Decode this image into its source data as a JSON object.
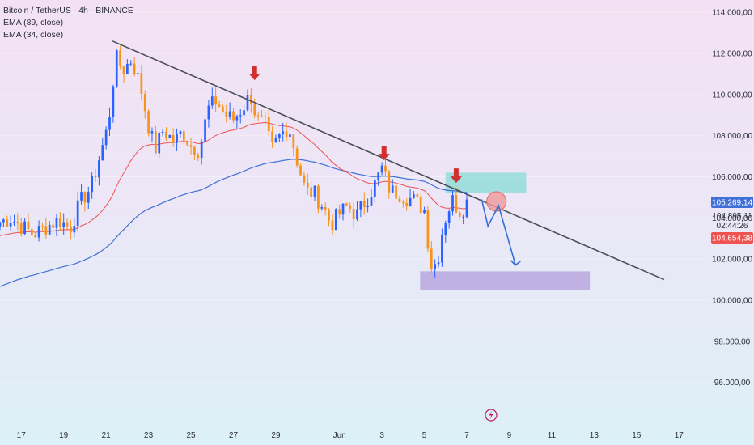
{
  "legend": {
    "symbol": "Bitcoin / TetherUS · 4h · BINANCE",
    "ema89": "EMA (89, close)",
    "ema34": "EMA (34, close)"
  },
  "price_tags": {
    "ema89": "105.269,14",
    "last_price": "104.895,11",
    "countdown": "02:44:26",
    "ema34": "104.654,38"
  },
  "colors": {
    "up": "#2962ff",
    "down": "#f7931a",
    "ema34": "#ef5350",
    "ema89": "#3f6fd8",
    "trendline": "#4a4e5a",
    "arrow": "#d32f2f",
    "resistance_zone": "#80dbd3",
    "support_zone": "#b39ddb",
    "projection": "#2f6fd6"
  },
  "chart_data": {
    "type": "candlestick",
    "symbol": "Bitcoin / TetherUS",
    "interval": "4h",
    "exchange": "BINANCE",
    "ylim": [
      95000,
      114600
    ],
    "y_ticks": [
      96000,
      98000,
      100000,
      102000,
      104000,
      106000,
      108000,
      110000,
      112000,
      114000
    ],
    "y_tick_labels": [
      "96.000,00",
      "98.000,00",
      "100.000,00",
      "102.000,00",
      "104.000,00",
      "106.000,00",
      "108.000,00",
      "110.000,00",
      "112.000,00",
      "114.000,00"
    ],
    "x_ticks": [
      {
        "label": "17",
        "day": 17
      },
      {
        "label": "19",
        "day": 19
      },
      {
        "label": "21",
        "day": 21
      },
      {
        "label": "23",
        "day": 23
      },
      {
        "label": "25",
        "day": 25
      },
      {
        "label": "27",
        "day": 27
      },
      {
        "label": "29",
        "day": 29
      },
      {
        "label": "Jun",
        "day": 32
      },
      {
        "label": "3",
        "day": 34
      },
      {
        "label": "5",
        "day": 36
      },
      {
        "label": "7",
        "day": 38
      },
      {
        "label": "9",
        "day": 40
      },
      {
        "label": "11",
        "day": 42
      },
      {
        "label": "13",
        "day": 44
      },
      {
        "label": "15",
        "day": 46
      },
      {
        "label": "17",
        "day": 48
      }
    ],
    "xlim": [
      16.0,
      49.4
    ],
    "ohlc_keyframes": [
      {
        "day": 16.0,
        "close": 103800
      },
      {
        "day": 16.5,
        "close": 104000
      },
      {
        "day": 17.0,
        "close": 103600
      },
      {
        "day": 17.6,
        "close": 103200
      },
      {
        "day": 18.2,
        "close": 103600
      },
      {
        "day": 18.8,
        "close": 103900
      },
      {
        "day": 19.3,
        "close": 103500
      },
      {
        "day": 19.8,
        "close": 104800
      },
      {
        "day": 20.3,
        "close": 105500
      },
      {
        "day": 20.7,
        "close": 107000
      },
      {
        "day": 21.1,
        "close": 108500
      },
      {
        "day": 21.45,
        "close": 111800
      },
      {
        "day": 21.8,
        "close": 111200
      },
      {
        "day": 22.2,
        "close": 111700
      },
      {
        "day": 22.6,
        "close": 110500
      },
      {
        "day": 23.0,
        "close": 108500
      },
      {
        "day": 23.3,
        "close": 107300
      },
      {
        "day": 23.7,
        "close": 108300
      },
      {
        "day": 24.2,
        "close": 107700
      },
      {
        "day": 24.6,
        "close": 108200
      },
      {
        "day": 25.0,
        "close": 107500
      },
      {
        "day": 25.4,
        "close": 107300
      },
      {
        "day": 25.8,
        "close": 109300
      },
      {
        "day": 26.2,
        "close": 109700
      },
      {
        "day": 26.6,
        "close": 109000
      },
      {
        "day": 27.0,
        "close": 108800
      },
      {
        "day": 27.4,
        "close": 109300
      },
      {
        "day": 27.8,
        "close": 110000
      },
      {
        "day": 28.1,
        "close": 108800
      },
      {
        "day": 28.5,
        "close": 108500
      },
      {
        "day": 28.8,
        "close": 107300
      },
      {
        "day": 29.2,
        "close": 108000
      },
      {
        "day": 29.6,
        "close": 108500
      },
      {
        "day": 30.0,
        "close": 106800
      },
      {
        "day": 30.4,
        "close": 105300
      },
      {
        "day": 30.8,
        "close": 105200
      },
      {
        "day": 31.2,
        "close": 104600
      },
      {
        "day": 31.6,
        "close": 103700
      },
      {
        "day": 32.0,
        "close": 104200
      },
      {
        "day": 32.4,
        "close": 104600
      },
      {
        "day": 32.8,
        "close": 104100
      },
      {
        "day": 33.2,
        "close": 104800
      },
      {
        "day": 33.6,
        "close": 105500
      },
      {
        "day": 34.0,
        "close": 106400
      },
      {
        "day": 34.4,
        "close": 105300
      },
      {
        "day": 34.8,
        "close": 105200
      },
      {
        "day": 35.2,
        "close": 105000
      },
      {
        "day": 35.6,
        "close": 104800
      },
      {
        "day": 36.0,
        "close": 104400
      },
      {
        "day": 36.3,
        "close": 101700
      },
      {
        "day": 36.6,
        "close": 101800
      },
      {
        "day": 36.9,
        "close": 103700
      },
      {
        "day": 37.3,
        "close": 104900
      },
      {
        "day": 37.7,
        "close": 104300
      },
      {
        "day": 38.1,
        "close": 104895
      }
    ],
    "series": [
      {
        "name": "EMA (89, close)",
        "last": 105269.14
      },
      {
        "name": "EMA (34, close)",
        "last": 104654.38
      }
    ],
    "last_price": 104895.11,
    "annotations": {
      "trendline": {
        "from": {
          "day": 21.3,
          "price": 112600
        },
        "to": {
          "day": 47.3,
          "price": 101000
        }
      },
      "resistance_zone": {
        "day_from": 37.0,
        "day_to": 40.8,
        "price_from": 105200,
        "price_to": 106200
      },
      "support_zone": {
        "day_from": 35.8,
        "day_to": 43.8,
        "price_from": 100500,
        "price_to": 101400
      },
      "down_arrows": [
        {
          "day": 28.0,
          "price": 110700
        },
        {
          "day": 34.1,
          "price": 106800
        },
        {
          "day": 37.5,
          "price": 105700
        }
      ],
      "circle": {
        "day": 39.4,
        "price": 104800
      },
      "projection_path": [
        {
          "day": 38.7,
          "price": 104900
        },
        {
          "day": 39.0,
          "price": 103600
        },
        {
          "day": 39.5,
          "price": 104600
        },
        {
          "day": 40.3,
          "price": 101700
        }
      ]
    }
  }
}
